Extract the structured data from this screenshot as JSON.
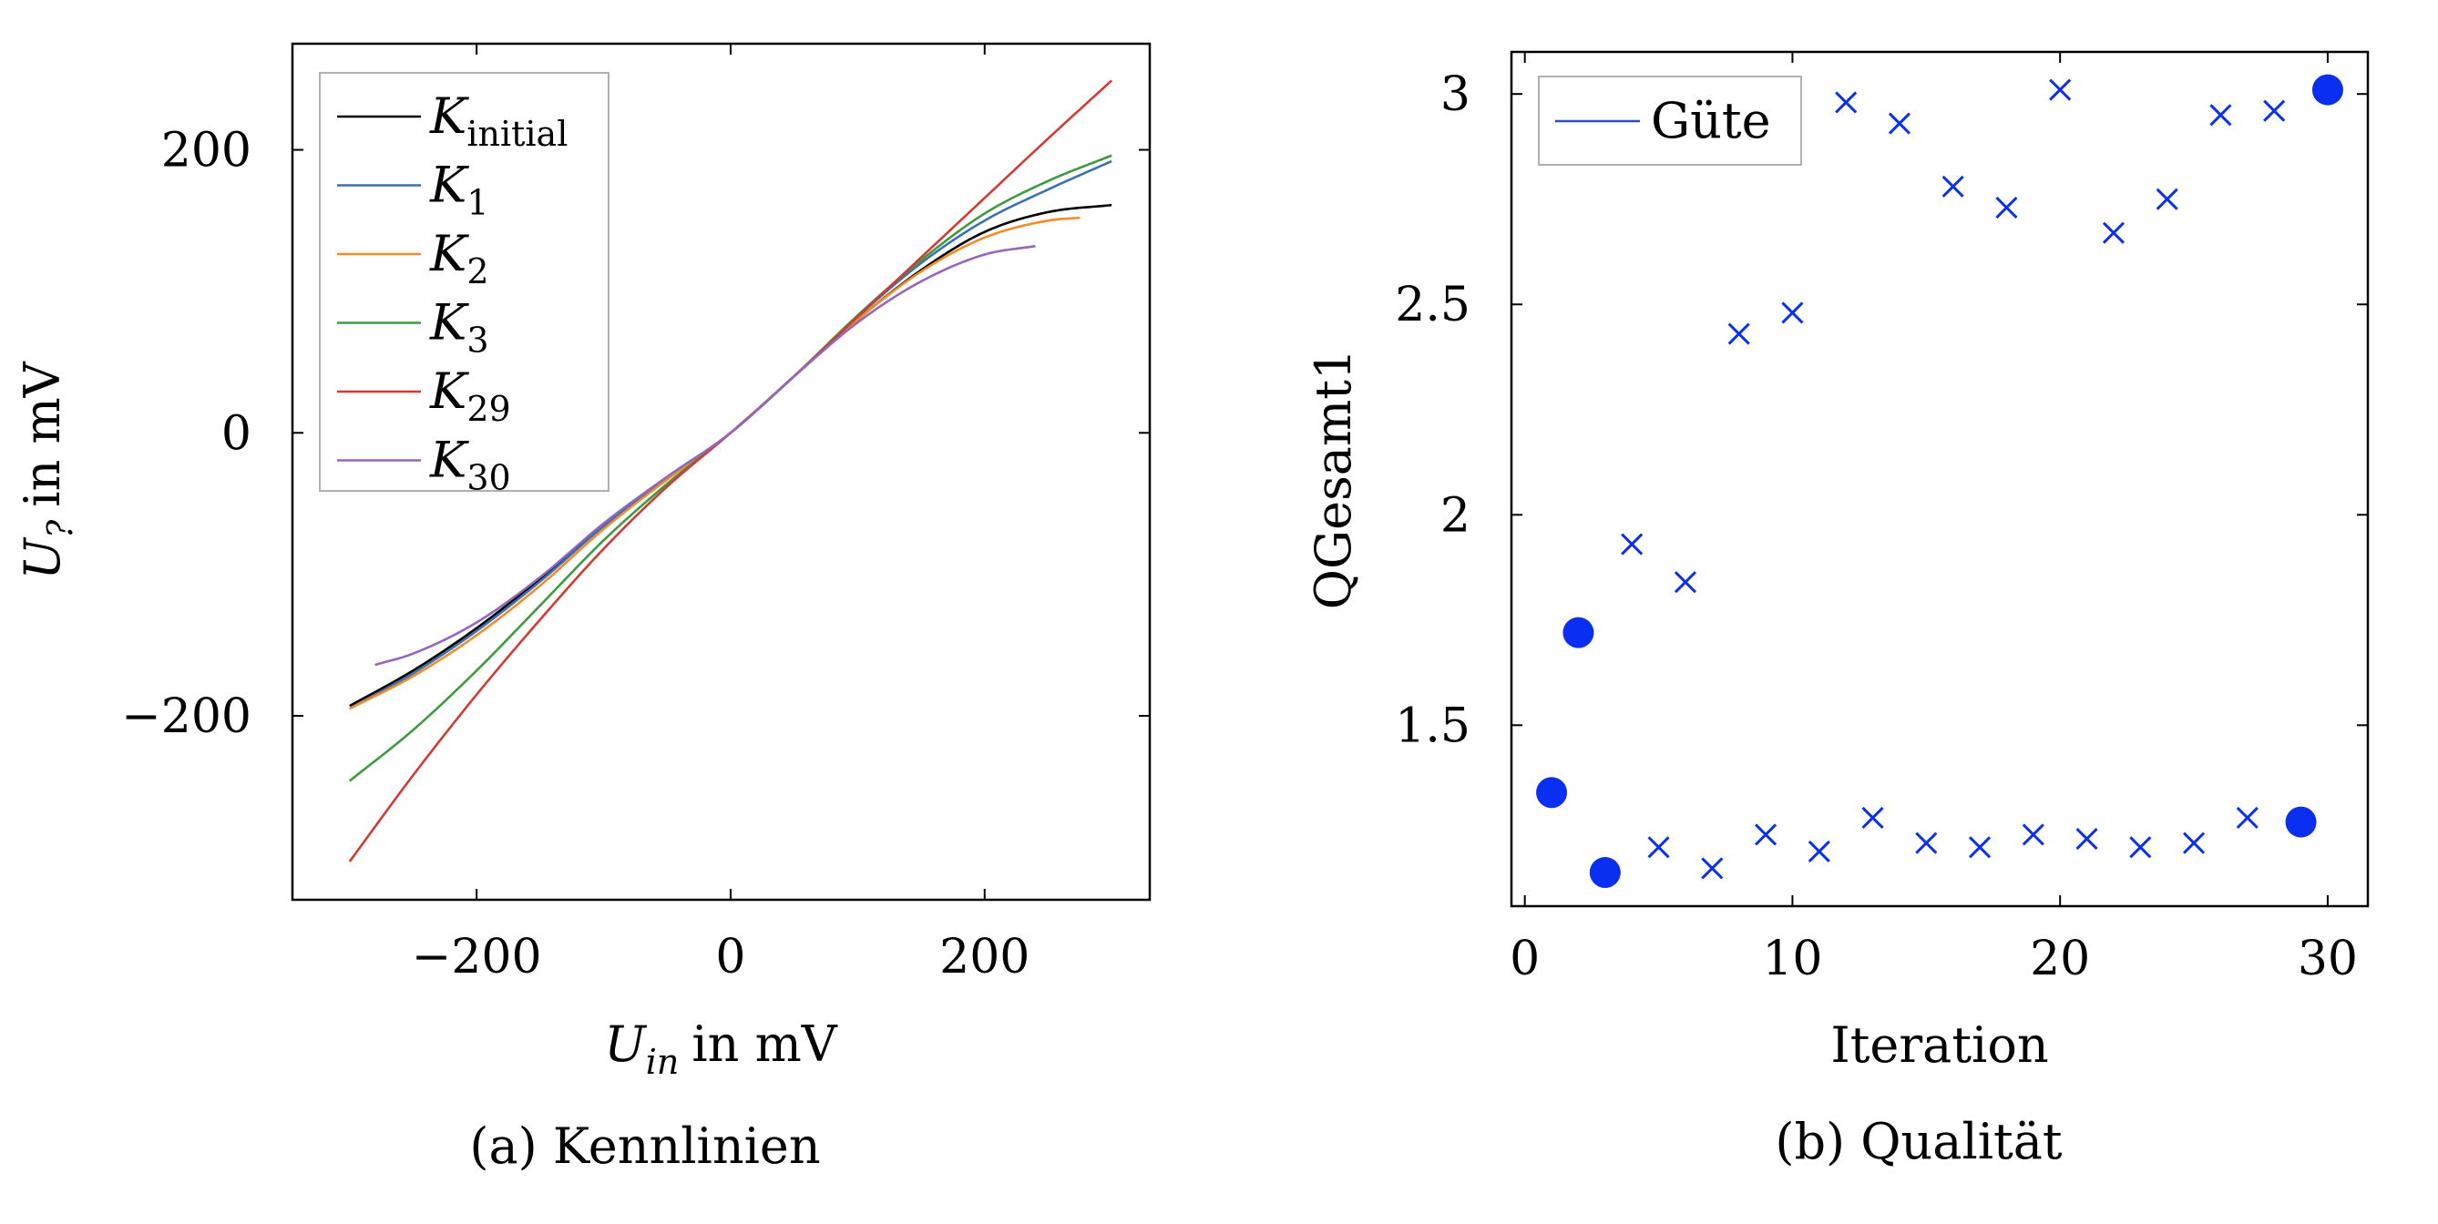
{
  "chart_data": [
    {
      "type": "line",
      "caption": "(a) Kennlinien",
      "xlabel": {
        "symbol": "U",
        "subscript": "in",
        "unit": "in mV"
      },
      "ylabel": {
        "symbol": "U",
        "subscript": "?",
        "unit": "in mV"
      },
      "xlim": [
        -345,
        330
      ],
      "ylim": [
        -330,
        275
      ],
      "xticks": [
        -200,
        0,
        200
      ],
      "yticks": [
        -200,
        0,
        200
      ],
      "xtick_labels": [
        "−200",
        "0",
        "200"
      ],
      "ytick_labels": [
        "−200",
        "0",
        "200"
      ],
      "grid": false,
      "legend_position": "top-left",
      "series": [
        {
          "name": "K",
          "subscript": "initial",
          "color": "#000000",
          "x_range": [
            -300,
            300
          ],
          "linear_range": [
            -45,
            45
          ],
          "points": [
            [
              -300,
              -193
            ],
            [
              -250,
              -168
            ],
            [
              -200,
              -138
            ],
            [
              -150,
              -103
            ],
            [
              -100,
              -65
            ],
            [
              -50,
              -32
            ],
            [
              0,
              0
            ],
            [
              50,
              40
            ],
            [
              100,
              80
            ],
            [
              150,
              115
            ],
            [
              200,
              142
            ],
            [
              250,
              156
            ],
            [
              300,
              161
            ]
          ]
        },
        {
          "name": "K",
          "subscript": "1",
          "color": "#3a72b0",
          "x_range": [
            -300,
            300
          ],
          "linear_range": [
            -45,
            45
          ],
          "points": [
            [
              -300,
              -195
            ],
            [
              -250,
              -170
            ],
            [
              -200,
              -140
            ],
            [
              -150,
              -105
            ],
            [
              -100,
              -66
            ],
            [
              -50,
              -32
            ],
            [
              0,
              0
            ],
            [
              50,
              40
            ],
            [
              100,
              82
            ],
            [
              150,
              120
            ],
            [
              200,
              150
            ],
            [
              250,
              172
            ],
            [
              300,
              192
            ]
          ]
        },
        {
          "name": "K",
          "subscript": "2",
          "color": "#f28c28",
          "x_range": [
            -300,
            275
          ],
          "linear_range": [
            -45,
            45
          ],
          "points": [
            [
              -300,
              -195
            ],
            [
              -250,
              -172
            ],
            [
              -200,
              -143
            ],
            [
              -150,
              -108
            ],
            [
              -100,
              -68
            ],
            [
              -50,
              -33
            ],
            [
              0,
              0
            ],
            [
              50,
              40
            ],
            [
              100,
              80
            ],
            [
              150,
              114
            ],
            [
              200,
              138
            ],
            [
              250,
              150
            ],
            [
              275,
              152
            ]
          ]
        },
        {
          "name": "K",
          "subscript": "3",
          "color": "#3f9a3f",
          "x_range": [
            -300,
            300
          ],
          "linear_range": [
            -45,
            45
          ],
          "points": [
            [
              -300,
              -246
            ],
            [
              -250,
              -210
            ],
            [
              -200,
              -168
            ],
            [
              -150,
              -122
            ],
            [
              -100,
              -76
            ],
            [
              -50,
              -36
            ],
            [
              0,
              0
            ],
            [
              50,
              40
            ],
            [
              100,
              83
            ],
            [
              150,
              122
            ],
            [
              200,
              155
            ],
            [
              250,
              178
            ],
            [
              300,
              196
            ]
          ]
        },
        {
          "name": "K",
          "subscript": "29",
          "color": "#d13b35",
          "x_range": [
            -300,
            300
          ],
          "linear_range": [
            -45,
            45
          ],
          "points": [
            [
              -300,
              -303
            ],
            [
              -250,
              -242
            ],
            [
              -200,
              -185
            ],
            [
              -150,
              -132
            ],
            [
              -100,
              -82
            ],
            [
              -50,
              -38
            ],
            [
              0,
              0
            ],
            [
              50,
              40
            ],
            [
              100,
              82
            ],
            [
              150,
              124
            ],
            [
              200,
              166
            ],
            [
              250,
              208
            ],
            [
              300,
              249
            ]
          ]
        },
        {
          "name": "K",
          "subscript": "30",
          "color": "#9467bd",
          "x_range": [
            -280,
            240
          ],
          "linear_range": [
            -45,
            45
          ],
          "points": [
            [
              -280,
              -164
            ],
            [
              -250,
              -156
            ],
            [
              -200,
              -134
            ],
            [
              -150,
              -102
            ],
            [
              -100,
              -64
            ],
            [
              -50,
              -31
            ],
            [
              0,
              0
            ],
            [
              50,
              40
            ],
            [
              100,
              78
            ],
            [
              150,
              107
            ],
            [
              200,
              126
            ],
            [
              240,
              132
            ]
          ]
        }
      ]
    },
    {
      "type": "scatter",
      "caption": "(b) Qualität",
      "xlabel": "Iteration",
      "ylabel": "QGesamt1",
      "xlim": [
        -0.5,
        31.5
      ],
      "ylim": [
        1.07,
        3.1
      ],
      "xticks": [
        0,
        10,
        20,
        30
      ],
      "yticks": [
        1.5,
        2,
        2.5,
        3
      ],
      "xtick_labels": [
        "0",
        "10",
        "20",
        "30"
      ],
      "ytick_labels": [
        "1.5",
        "2",
        "2.5",
        "3"
      ],
      "grid": false,
      "legend_position": "top-left",
      "legend": [
        {
          "name": "Güte",
          "color": "#2b4acb"
        }
      ],
      "marker_color": "#0a2ff0",
      "series": [
        {
          "marker": "circle",
          "x": [
            1,
            2,
            3,
            29,
            30
          ],
          "y": [
            1.34,
            1.72,
            1.15,
            1.27,
            3.01
          ]
        },
        {
          "marker": "cross",
          "x": [
            4,
            5,
            6,
            7,
            8,
            9,
            10,
            11,
            12,
            13,
            14,
            15,
            16,
            17,
            18,
            19,
            20,
            21,
            22,
            23,
            24,
            25,
            26,
            27,
            28
          ],
          "y": [
            1.93,
            1.21,
            1.84,
            1.16,
            2.43,
            1.24,
            2.48,
            1.2,
            2.98,
            1.28,
            2.93,
            1.22,
            2.78,
            1.21,
            2.73,
            1.24,
            3.01,
            1.23,
            2.67,
            1.21,
            2.75,
            1.22,
            2.95,
            1.28,
            2.96
          ]
        }
      ]
    }
  ]
}
